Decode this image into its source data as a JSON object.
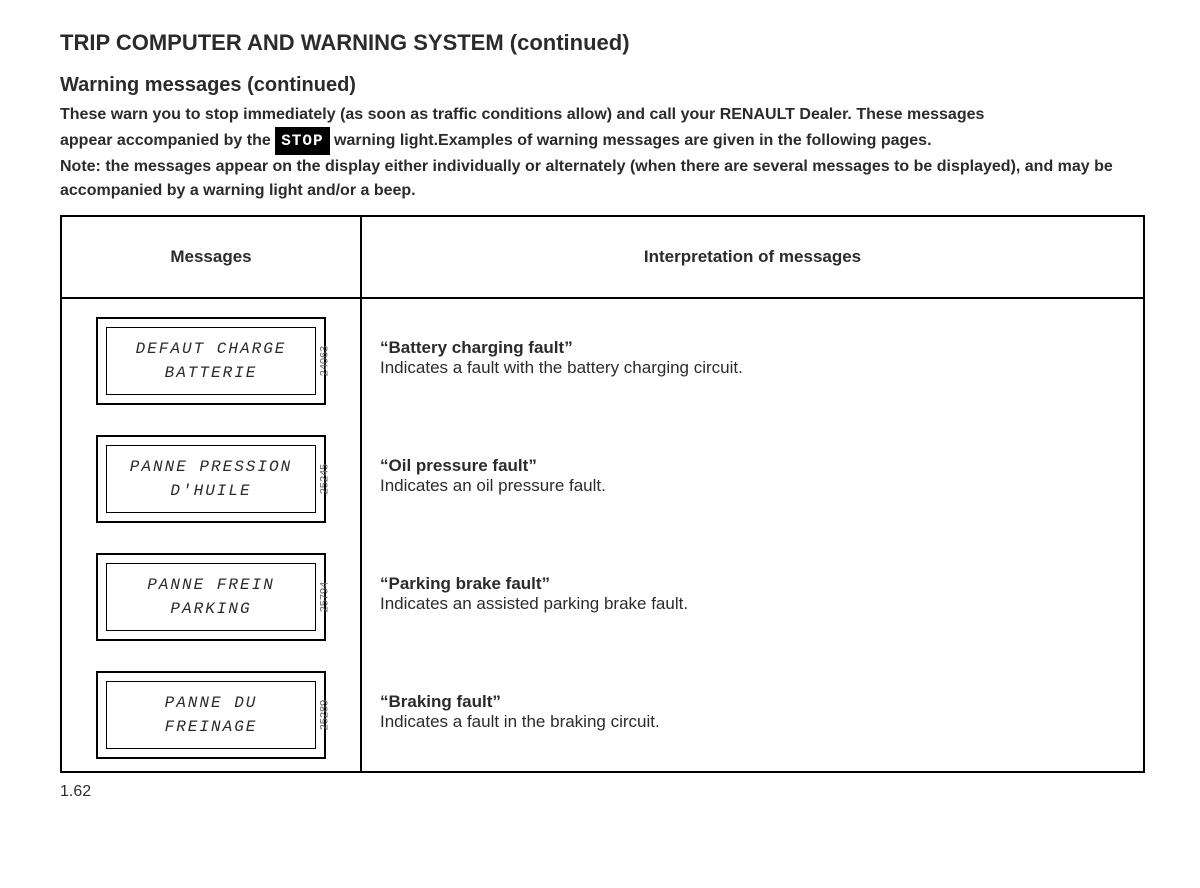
{
  "page_title": "TRIP COMPUTER AND WARNING SYSTEM (continued)",
  "section_title": "Warning messages (continued)",
  "intro_line1": "These warn you to stop immediately (as soon as traffic conditions allow) and call your RENAULT Dealer. These messages",
  "intro_line2a": "appear accompanied by the ",
  "stop_label": "STOP",
  "intro_line2b": " warning light.",
  "intro_line2c": "Examples of warning messages are given in the following pages.",
  "intro_note": "Note: the messages appear on the display either individually or alternately (when there are several messages to be displayed), and may be accompanied by a warning light and/or a beep.",
  "table": {
    "header_messages": "Messages",
    "header_interp": "Interpretation of messages",
    "rows": [
      {
        "display_line1": "DEFAUT CHARGE",
        "display_line2": "BATTERIE",
        "ref": "24063",
        "title": "“Battery charging fault”",
        "desc": "Indicates a fault with the battery charging circuit."
      },
      {
        "display_line1": "PANNE PRESSION",
        "display_line2": "D'HUILE",
        "ref": "25245",
        "title": "“Oil pressure fault”",
        "desc": "Indicates an oil pressure fault."
      },
      {
        "display_line1": "PANNE FREIN",
        "display_line2": "PARKING",
        "ref": "25794",
        "title": "“Parking brake fault”",
        "desc": "Indicates an assisted parking brake fault."
      },
      {
        "display_line1": "PANNE DU",
        "display_line2": "FREINAGE",
        "ref": "25289",
        "title": "“Braking fault”",
        "desc": "Indicates a fault in the braking circuit."
      }
    ]
  },
  "page_number": "1.62"
}
